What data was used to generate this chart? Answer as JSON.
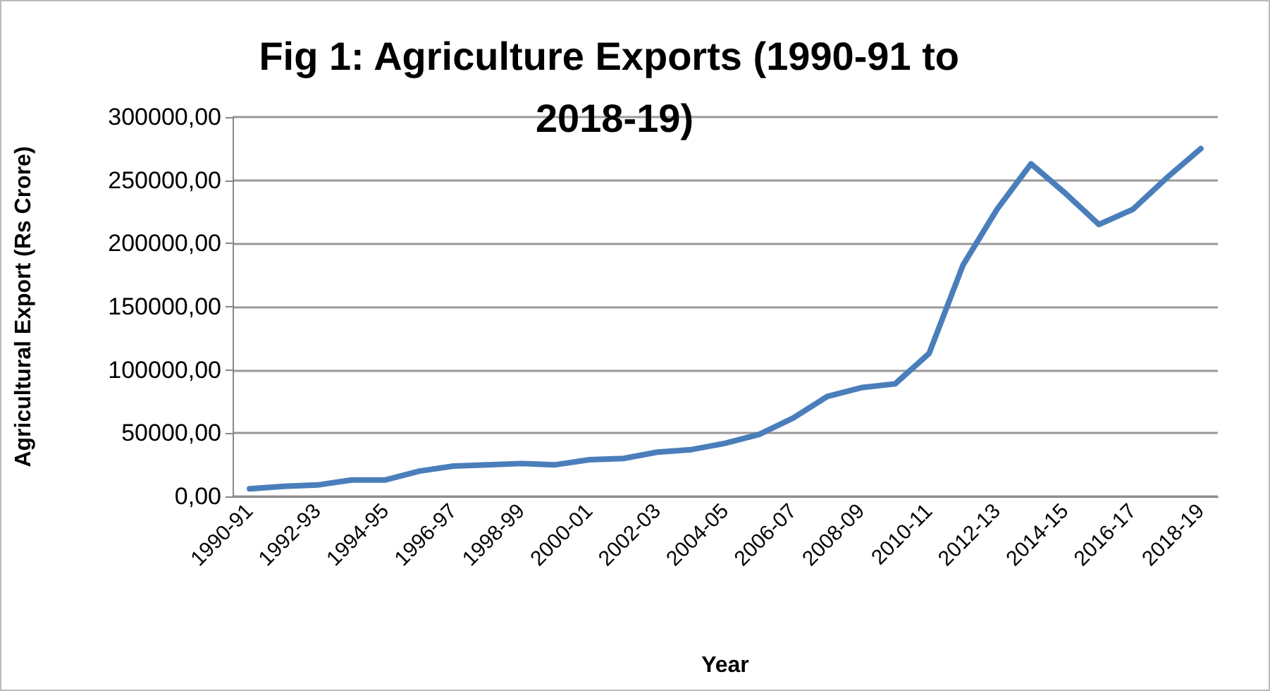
{
  "chart_data": {
    "type": "line",
    "title": "Fig 1: Agriculture Exports (1990-91 to 2018-19)",
    "xlabel": "Year",
    "ylabel": "Agricultural Export (Rs Crore)",
    "categories": [
      "1990-91",
      null,
      "1992-93",
      null,
      "1994-95",
      null,
      "1996-97",
      null,
      "1998-99",
      null,
      "2000-01",
      null,
      "2002-03",
      null,
      "2004-05",
      null,
      "2006-07",
      null,
      "2008-09",
      null,
      "2010-11",
      null,
      "2012-13",
      null,
      "2014-15",
      null,
      "2016-17",
      null,
      "2018-19"
    ],
    "series": [
      {
        "color": "#4a7ebb",
        "values": [
          6000,
          8000,
          9000,
          13000,
          13000,
          20000,
          24000,
          25000,
          26000,
          25000,
          29000,
          30000,
          35000,
          37000,
          42000,
          49000,
          62000,
          79000,
          86000,
          89000,
          113000,
          183000,
          227000,
          263000,
          240000,
          215000,
          227000,
          252000,
          275000
        ]
      }
    ],
    "ylim": [
      0,
      300000
    ],
    "yticks": [
      {
        "value": 0,
        "label": "0,00"
      },
      {
        "value": 50000,
        "label": "50000,00"
      },
      {
        "value": 100000,
        "label": "100000,00"
      },
      {
        "value": 150000,
        "label": "150000,00"
      },
      {
        "value": 200000,
        "label": "200000,00"
      },
      {
        "value": 250000,
        "label": "250000,00"
      },
      {
        "value": 300000,
        "label": "300000,00"
      }
    ],
    "grid": "y",
    "marker": "none",
    "line_style": "solid"
  }
}
